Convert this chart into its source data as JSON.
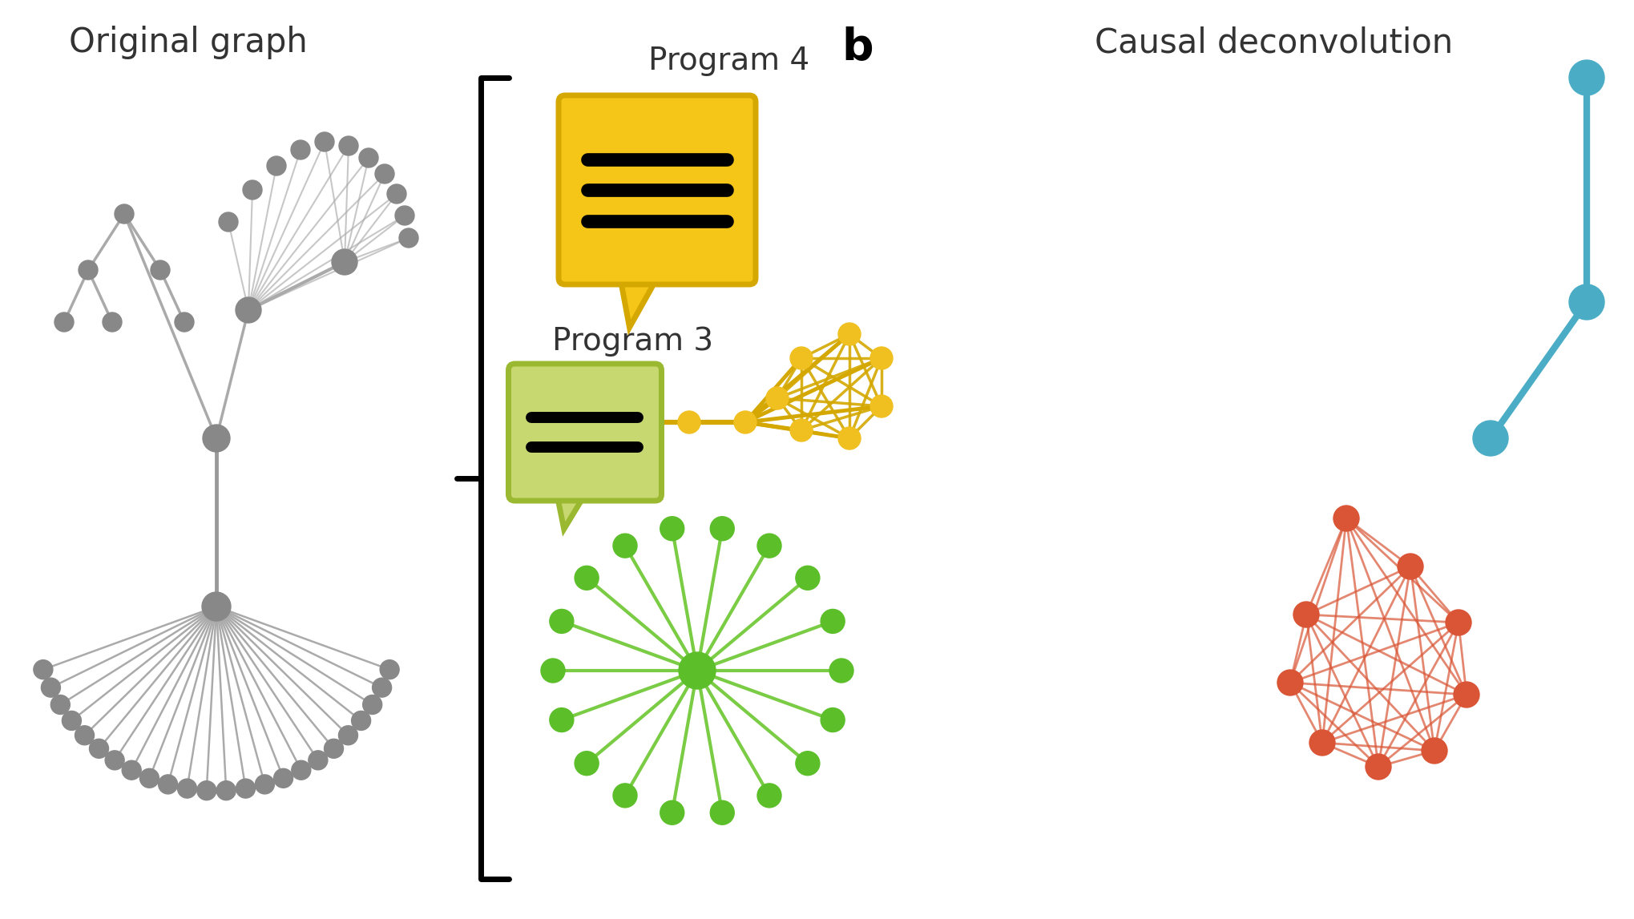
{
  "bg_color": "#ffffff",
  "title_b": "b",
  "label_original": "Original graph",
  "label_causal": "Causal deconvolution",
  "label_prog4": "Program 4",
  "label_prog3": "Program 3",
  "gray_edge_color": "#aaaaaa",
  "gray_node_color": "#888888",
  "yellow_color": "#F5C518",
  "yellow_edge": "#D4A800",
  "yellow_node": "#F0C020",
  "blue_color": "#4BADC5",
  "blue_edge": "#4BADC5",
  "blue_node": "#4BADC5",
  "green_color": "#5CBF2A",
  "green_edge": "#7ACC44",
  "green_node": "#5CBF2A",
  "red_color": "#D95535",
  "red_edge": "#D95535",
  "red_node": "#D95535"
}
